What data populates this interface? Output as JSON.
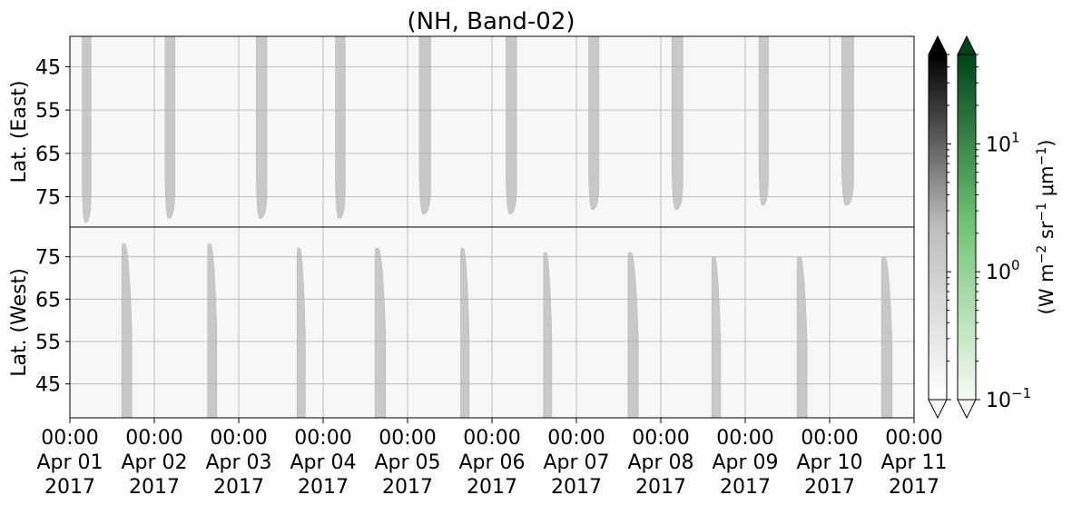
{
  "chart_data": {
    "type": "heatmap",
    "title": "(NH, Band-02)",
    "x_ticks": [
      {
        "time": "00:00",
        "date": "Apr 01",
        "year": "2017"
      },
      {
        "time": "00:00",
        "date": "Apr 02",
        "year": "2017"
      },
      {
        "time": "00:00",
        "date": "Apr 03",
        "year": "2017"
      },
      {
        "time": "00:00",
        "date": "Apr 04",
        "year": "2017"
      },
      {
        "time": "00:00",
        "date": "Apr 05",
        "year": "2017"
      },
      {
        "time": "00:00",
        "date": "Apr 06",
        "year": "2017"
      },
      {
        "time": "00:00",
        "date": "Apr 07",
        "year": "2017"
      },
      {
        "time": "00:00",
        "date": "Apr 08",
        "year": "2017"
      },
      {
        "time": "00:00",
        "date": "Apr 09",
        "year": "2017"
      },
      {
        "time": "00:00",
        "date": "Apr 10",
        "year": "2017"
      },
      {
        "time": "00:00",
        "date": "Apr 11",
        "year": "2017"
      }
    ],
    "xlim": [
      "2017-04-01 00:00",
      "2017-04-11 00:00"
    ],
    "grid": true,
    "panels": [
      {
        "name": "east",
        "ylabel": "Lat. (East)",
        "ylim": [
          38,
          82
        ],
        "y_inverted": true,
        "yticks": [
          45,
          55,
          65,
          75
        ],
        "day_regions": [
          {
            "start": "2017-04-01 03:30",
            "end": "2017-04-01 06:00",
            "max_lat": 81
          },
          {
            "start": "2017-04-02 03:05",
            "end": "2017-04-02 05:50",
            "max_lat": 80
          },
          {
            "start": "2017-04-03 05:00",
            "end": "2017-04-03 08:00",
            "max_lat": 80
          },
          {
            "start": "2017-04-04 03:30",
            "end": "2017-04-04 06:15",
            "max_lat": 80
          },
          {
            "start": "2017-04-05 03:20",
            "end": "2017-04-05 06:35",
            "max_lat": 79
          },
          {
            "start": "2017-04-06 04:00",
            "end": "2017-04-06 07:00",
            "max_lat": 79
          },
          {
            "start": "2017-04-07 03:30",
            "end": "2017-04-07 06:25",
            "max_lat": 78
          },
          {
            "start": "2017-04-08 03:10",
            "end": "2017-04-08 06:15",
            "max_lat": 78
          },
          {
            "start": "2017-04-09 03:55",
            "end": "2017-04-09 06:35",
            "max_lat": 77
          },
          {
            "start": "2017-04-10 03:25",
            "end": "2017-04-10 06:50",
            "max_lat": 77
          }
        ]
      },
      {
        "name": "west",
        "ylabel": "Lat. (West)",
        "ylim": [
          37,
          82
        ],
        "y_inverted": false,
        "yticks": [
          45,
          55,
          65,
          75
        ],
        "day_regions": [
          {
            "start": "2017-04-01 14:45",
            "end": "2017-04-01 17:35",
            "max_lat": 78
          },
          {
            "start": "2017-04-02 15:10",
            "end": "2017-04-02 17:45",
            "max_lat": 78
          },
          {
            "start": "2017-04-03 16:35",
            "end": "2017-04-03 18:55",
            "max_lat": 77
          },
          {
            "start": "2017-04-04 14:45",
            "end": "2017-04-04 17:45",
            "max_lat": 77
          },
          {
            "start": "2017-04-05 15:05",
            "end": "2017-04-05 17:30",
            "max_lat": 77
          },
          {
            "start": "2017-04-06 14:40",
            "end": "2017-04-06 17:00",
            "max_lat": 76
          },
          {
            "start": "2017-04-07 14:40",
            "end": "2017-04-07 17:35",
            "max_lat": 76
          },
          {
            "start": "2017-04-08 14:30",
            "end": "2017-04-08 17:00",
            "max_lat": 75
          },
          {
            "start": "2017-04-09 14:45",
            "end": "2017-04-09 17:35",
            "max_lat": 75
          },
          {
            "start": "2017-04-10 14:45",
            "end": "2017-04-10 17:45",
            "max_lat": 75
          }
        ]
      }
    ],
    "colorbars": [
      {
        "name": "gray",
        "colormap": "Greys",
        "colors": [
          "#ffffff",
          "#bdbdbd",
          "#000000"
        ],
        "extend": "both"
      },
      {
        "name": "green",
        "colormap": "Greens",
        "colors": [
          "#f7fcf5",
          "#74c476",
          "#00441b"
        ],
        "extend": "both"
      }
    ],
    "colorbar_scale": "log",
    "colorbar_range": [
      0.1,
      50
    ],
    "colorbar_ticks": [
      {
        "value": 0.1,
        "base": "10",
        "exp": "−1"
      },
      {
        "value": 1,
        "base": "10",
        "exp": "0"
      },
      {
        "value": 10,
        "base": "10",
        "exp": "1"
      }
    ],
    "colorbar_label": {
      "prefix": "(W m",
      "exp1": "−2",
      "mid": " sr",
      "exp2": "−1",
      "mu": " μm",
      "exp3": "−1",
      "suffix": ")"
    },
    "day_color": "#c8c8c8",
    "background_color": "#f7f7f7"
  }
}
